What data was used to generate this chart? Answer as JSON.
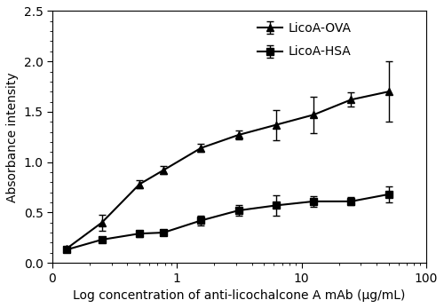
{
  "title": "",
  "xlabel": "Log concentration of anti-licochalcone A mAb (μg/mL)",
  "ylabel": "Absorbance intensity",
  "xlim": [
    0.1,
    100
  ],
  "ylim": [
    0.0,
    2.5
  ],
  "yticks": [
    0.0,
    0.5,
    1.0,
    1.5,
    2.0,
    2.5
  ],
  "xtick_positions": [
    0.1,
    1,
    10,
    100
  ],
  "xtick_labels": [
    "0",
    "1",
    "10",
    "100"
  ],
  "ova_x": [
    0.13,
    0.25,
    0.5,
    0.78,
    1.56,
    3.125,
    6.25,
    12.5,
    25,
    50
  ],
  "ova_y": [
    0.14,
    0.4,
    0.78,
    0.92,
    1.14,
    1.27,
    1.37,
    1.47,
    1.62,
    1.7
  ],
  "ova_yerr": [
    0.02,
    0.08,
    0.04,
    0.04,
    0.04,
    0.04,
    0.15,
    0.18,
    0.07,
    0.3
  ],
  "hsa_x": [
    0.13,
    0.25,
    0.5,
    0.78,
    1.56,
    3.125,
    6.25,
    12.5,
    25,
    50
  ],
  "hsa_y": [
    0.13,
    0.23,
    0.29,
    0.3,
    0.42,
    0.52,
    0.57,
    0.61,
    0.61,
    0.68
  ],
  "hsa_yerr": [
    0.02,
    0.02,
    0.03,
    0.03,
    0.05,
    0.05,
    0.1,
    0.05,
    0.04,
    0.08
  ],
  "line_color": "#000000",
  "legend_ova": "LicoA-OVA",
  "legend_hsa": "LicoA-HSA",
  "background_color": "#ffffff",
  "fontsize": 10,
  "marker_size": 6,
  "linewidth": 1.5,
  "capsize": 3,
  "elinewidth": 1.0
}
